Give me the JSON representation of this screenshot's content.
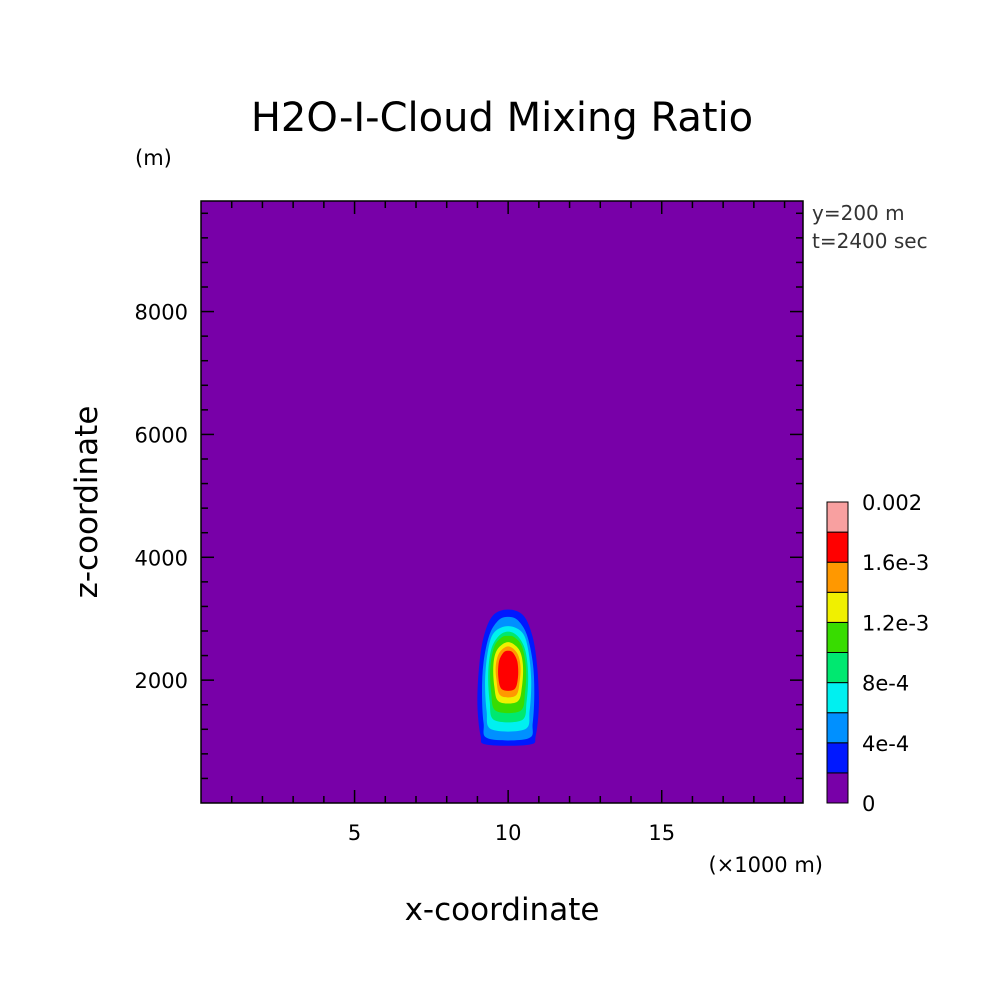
{
  "chart_data": {
    "type": "heatmap",
    "title": "H2O-I-Cloud Mixing Ratio",
    "xlabel": "x-coordinate",
    "ylabel": "z-coordinate",
    "x_unit": "(×1000 m)",
    "y_unit": "(m)",
    "annotations": [
      "y=200 m",
      "t=2400 sec"
    ],
    "xlim": [
      0,
      19.6
    ],
    "ylim": [
      0,
      9800
    ],
    "x_ticks": [
      5,
      10,
      15
    ],
    "y_ticks": [
      2000,
      4000,
      6000,
      8000
    ],
    "grid": false,
    "background_level": 0,
    "colorbar": {
      "levels": [
        0,
        0.0002,
        0.0004,
        0.0006,
        0.0008,
        0.001,
        0.0012,
        0.0014,
        0.0016,
        0.0018,
        0.002
      ],
      "tick_labels": [
        "0",
        "4e-4",
        "8e-4",
        "1.2e-3",
        "1.6e-3",
        "0.002"
      ],
      "colors": [
        "#7800a8",
        "#0018ff",
        "#0090ff",
        "#00f0f0",
        "#00e870",
        "#38dc00",
        "#f0f000",
        "#ff9800",
        "#ff0000",
        "#f8a0a0"
      ]
    },
    "contours": [
      {
        "level": 0.0002,
        "color": "#0018ff",
        "points": [
          [
            9.3,
            950
          ],
          [
            10.7,
            950
          ],
          [
            10.9,
            1100
          ],
          [
            11.0,
            1600
          ],
          [
            10.95,
            2200
          ],
          [
            10.8,
            2700
          ],
          [
            10.5,
            3050
          ],
          [
            10.0,
            3150
          ],
          [
            9.5,
            3050
          ],
          [
            9.2,
            2700
          ],
          [
            9.05,
            2200
          ],
          [
            9.0,
            1600
          ],
          [
            9.1,
            1100
          ]
        ]
      },
      {
        "level": 0.0004,
        "color": "#0090ff",
        "points": [
          [
            9.35,
            1050
          ],
          [
            10.65,
            1050
          ],
          [
            10.8,
            1300
          ],
          [
            10.85,
            1800
          ],
          [
            10.8,
            2300
          ],
          [
            10.6,
            2750
          ],
          [
            10.3,
            2980
          ],
          [
            10.0,
            3030
          ],
          [
            9.7,
            2980
          ],
          [
            9.4,
            2750
          ],
          [
            9.2,
            2300
          ],
          [
            9.15,
            1800
          ],
          [
            9.2,
            1300
          ]
        ]
      },
      {
        "level": 0.0006,
        "color": "#00f0f0",
        "points": [
          [
            9.45,
            1200
          ],
          [
            10.55,
            1200
          ],
          [
            10.7,
            1500
          ],
          [
            10.75,
            2000
          ],
          [
            10.65,
            2500
          ],
          [
            10.45,
            2780
          ],
          [
            10.0,
            2880
          ],
          [
            9.55,
            2780
          ],
          [
            9.35,
            2500
          ],
          [
            9.25,
            2000
          ],
          [
            9.3,
            1500
          ]
        ]
      },
      {
        "level": 0.0008,
        "color": "#00e870",
        "points": [
          [
            9.55,
            1350
          ],
          [
            10.45,
            1350
          ],
          [
            10.6,
            1650
          ],
          [
            10.65,
            2100
          ],
          [
            10.55,
            2500
          ],
          [
            10.3,
            2720
          ],
          [
            10.0,
            2790
          ],
          [
            9.7,
            2720
          ],
          [
            9.45,
            2500
          ],
          [
            9.35,
            2100
          ],
          [
            9.4,
            1650
          ]
        ]
      },
      {
        "level": 0.001,
        "color": "#38dc00",
        "points": [
          [
            9.6,
            1500
          ],
          [
            10.4,
            1500
          ],
          [
            10.55,
            1800
          ],
          [
            10.58,
            2200
          ],
          [
            10.45,
            2550
          ],
          [
            10.2,
            2700
          ],
          [
            10.0,
            2720
          ],
          [
            9.8,
            2700
          ],
          [
            9.55,
            2550
          ],
          [
            9.42,
            2200
          ],
          [
            9.45,
            1800
          ]
        ]
      },
      {
        "level": 0.0012,
        "color": "#f0f000",
        "points": [
          [
            9.7,
            1650
          ],
          [
            10.3,
            1650
          ],
          [
            10.45,
            1900
          ],
          [
            10.48,
            2250
          ],
          [
            10.35,
            2500
          ],
          [
            10.0,
            2620
          ],
          [
            9.65,
            2500
          ],
          [
            9.52,
            2250
          ],
          [
            9.55,
            1900
          ]
        ]
      },
      {
        "level": 0.0014,
        "color": "#ff9800",
        "points": [
          [
            9.75,
            1750
          ],
          [
            10.25,
            1750
          ],
          [
            10.38,
            2000
          ],
          [
            10.4,
            2250
          ],
          [
            10.28,
            2450
          ],
          [
            10.0,
            2550
          ],
          [
            9.72,
            2450
          ],
          [
            9.6,
            2250
          ],
          [
            9.62,
            2000
          ]
        ]
      },
      {
        "level": 0.0016,
        "color": "#ff0000",
        "points": [
          [
            9.8,
            1850
          ],
          [
            10.2,
            1850
          ],
          [
            10.32,
            2050
          ],
          [
            10.3,
            2300
          ],
          [
            10.15,
            2450
          ],
          [
            10.0,
            2480
          ],
          [
            9.85,
            2450
          ],
          [
            9.7,
            2300
          ],
          [
            9.68,
            2050
          ]
        ]
      }
    ]
  }
}
